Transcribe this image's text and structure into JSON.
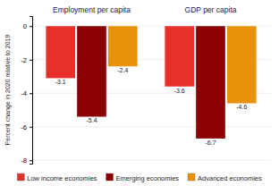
{
  "chart_data": {
    "type": "bar",
    "categories": [
      "Employment per capita",
      "GDP per capita"
    ],
    "series": [
      {
        "name": "Low income economies",
        "color": "#e8302a",
        "values": [
          -3.1,
          -3.6
        ]
      },
      {
        "name": "Emerging economies",
        "color": "#8b0000",
        "values": [
          -5.4,
          -6.7
        ]
      },
      {
        "name": "Advanced economies",
        "color": "#e8920a",
        "values": [
          -2.4,
          -4.6
        ]
      }
    ],
    "ylabel": "Percent change in 2020 relative to 2019",
    "ylim": [
      -8.2,
      0.6
    ],
    "yticks": [
      0,
      -2,
      -4,
      -6,
      -8
    ],
    "grid": true,
    "legend": "bottom",
    "data_labels": true
  }
}
